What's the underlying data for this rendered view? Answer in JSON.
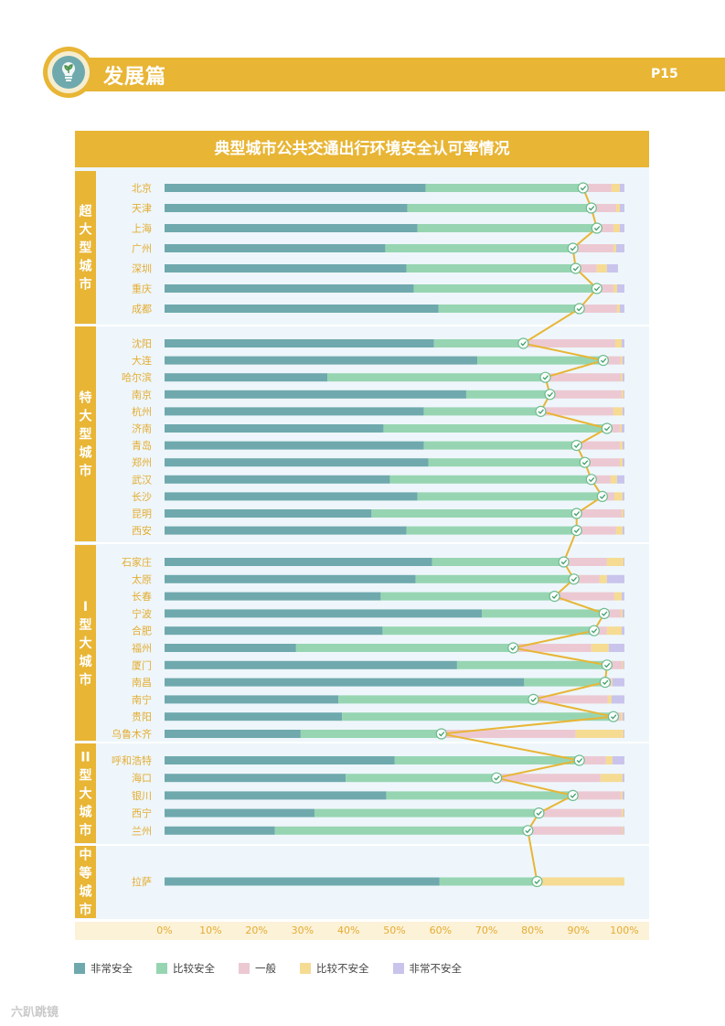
{
  "header": {
    "section_title": "发展篇",
    "page_number": "P15"
  },
  "watermark": "六趴跳镜",
  "colors": {
    "accent": "#e8b535",
    "very_safe": "#6fa9ad",
    "safe": "#97d5b2",
    "neutral": "#ecc9d2",
    "unsafe": "#f6db93",
    "very_unsafe": "#c9c4ec",
    "line": "#e8b535"
  },
  "chart_data": {
    "type": "bar",
    "stacked": true,
    "orientation": "horizontal",
    "title": "典型城市公共交通出行环境安全认可率情况",
    "x_ticks": [
      "0%",
      "10%",
      "20%",
      "30%",
      "40%",
      "50%",
      "60%",
      "70%",
      "80%",
      "90%",
      "100%"
    ],
    "xlim": [
      0,
      100
    ],
    "series_names": [
      "非常安全",
      "比较安全",
      "一般",
      "比较不安全",
      "非常不安全"
    ],
    "groups": [
      {
        "name": "超大型城市",
        "label_chars": [
          "超",
          "大",
          "型",
          "城",
          "市"
        ],
        "cities": [
          {
            "name": "北京",
            "values": [
              56.8,
              34.2,
              6.2,
              1.8,
              1.0
            ]
          },
          {
            "name": "天津",
            "values": [
              52.8,
              40.0,
              5.4,
              0.8,
              1.0
            ]
          },
          {
            "name": "上海",
            "values": [
              55.0,
              39.0,
              3.6,
              1.4,
              1.0
            ]
          },
          {
            "name": "广州",
            "values": [
              48.0,
              40.8,
              8.8,
              0.6,
              1.8
            ]
          },
          {
            "name": "深圳",
            "values": [
              52.6,
              36.8,
              4.6,
              2.2,
              2.4
            ]
          },
          {
            "name": "重庆",
            "values": [
              54.2,
              39.8,
              3.6,
              0.8,
              1.6
            ]
          },
          {
            "name": "成都",
            "values": [
              59.6,
              30.6,
              8.2,
              0.6,
              1.0
            ]
          }
        ]
      },
      {
        "name": "特大型城市",
        "label_chars": [
          "特",
          "大",
          "型",
          "城",
          "市"
        ],
        "cities": [
          {
            "name": "沈阳",
            "values": [
              58.6,
              19.4,
              20.0,
              1.4,
              0.6
            ]
          },
          {
            "name": "大连",
            "values": [
              68.0,
              27.4,
              3.8,
              0.4,
              0.4
            ]
          },
          {
            "name": "哈尔滨",
            "values": [
              35.4,
              47.4,
              16.4,
              0.4,
              0.4
            ]
          },
          {
            "name": "南京",
            "values": [
              65.6,
              18.2,
              15.6,
              0.4,
              0.2
            ]
          },
          {
            "name": "杭州",
            "values": [
              56.4,
              25.4,
              15.8,
              2.0,
              0.4
            ]
          },
          {
            "name": "济南",
            "values": [
              47.6,
              48.6,
              2.8,
              0.4,
              0.6
            ]
          },
          {
            "name": "青岛",
            "values": [
              56.4,
              33.2,
              9.4,
              0.6,
              0.4
            ]
          },
          {
            "name": "郑州",
            "values": [
              57.4,
              34.0,
              7.6,
              0.6,
              0.4
            ]
          },
          {
            "name": "武汉",
            "values": [
              49.0,
              43.8,
              4.2,
              1.4,
              1.6
            ]
          },
          {
            "name": "长沙",
            "values": [
              55.0,
              40.2,
              2.6,
              1.8,
              0.4
            ]
          },
          {
            "name": "昆明",
            "values": [
              45.0,
              44.6,
              9.8,
              0.4,
              0.2
            ]
          },
          {
            "name": "西安",
            "values": [
              52.6,
              37.0,
              8.6,
              1.4,
              0.4
            ]
          }
        ]
      },
      {
        "name": "I型大城市",
        "label_chars": [
          "I",
          "型",
          "大",
          "城",
          "市"
        ],
        "cities": [
          {
            "name": "石家庄",
            "values": [
              58.2,
              28.6,
              9.4,
              3.6,
              0.2
            ]
          },
          {
            "name": "太原",
            "values": [
              54.6,
              34.4,
              5.6,
              1.6,
              3.8
            ]
          },
          {
            "name": "长春",
            "values": [
              47.0,
              37.8,
              13.0,
              1.6,
              0.6
            ]
          },
          {
            "name": "宁波",
            "values": [
              69.0,
              26.6,
              3.6,
              0.4,
              0.4
            ]
          },
          {
            "name": "合肥",
            "values": [
              47.4,
              46.0,
              2.8,
              3.2,
              0.6
            ]
          },
          {
            "name": "福州",
            "values": [
              28.6,
              47.2,
              17.0,
              3.8,
              3.4
            ]
          },
          {
            "name": "厦门",
            "values": [
              63.6,
              32.6,
              3.4,
              0.2,
              0.2
            ]
          },
          {
            "name": "南昌",
            "values": [
              78.2,
              17.6,
              1.4,
              0.2,
              2.6
            ]
          },
          {
            "name": "南宁",
            "values": [
              37.8,
              42.4,
              16.2,
              0.8,
              2.8
            ]
          },
          {
            "name": "贵阳",
            "values": [
              38.6,
              59.0,
              1.6,
              0.4,
              0.4
            ]
          },
          {
            "name": "乌鲁木齐",
            "values": [
              29.6,
              30.6,
              29.2,
              10.4,
              0.2
            ]
          }
        ]
      },
      {
        "name": "II型大城市",
        "label_chars": [
          "II",
          "型",
          "大",
          "城",
          "市"
        ],
        "cities": [
          {
            "name": "呼和浩特",
            "values": [
              50.0,
              40.2,
              5.8,
              1.4,
              2.6
            ]
          },
          {
            "name": "海口",
            "values": [
              39.4,
              32.8,
              22.6,
              4.8,
              0.4
            ]
          },
          {
            "name": "银川",
            "values": [
              48.2,
              40.6,
              10.4,
              0.4,
              0.4
            ]
          },
          {
            "name": "西宁",
            "values": [
              32.6,
              48.8,
              18.0,
              0.4,
              0.2
            ]
          },
          {
            "name": "兰州",
            "values": [
              24.0,
              55.0,
              20.6,
              0.2,
              0.2
            ]
          }
        ]
      },
      {
        "name": "中等城市",
        "label_chars": [
          "中",
          "等",
          "城",
          "市"
        ],
        "cities": [
          {
            "name": "拉萨",
            "values": [
              59.8,
              21.2,
              0.6,
              18.4,
              0.0
            ]
          }
        ]
      }
    ]
  }
}
